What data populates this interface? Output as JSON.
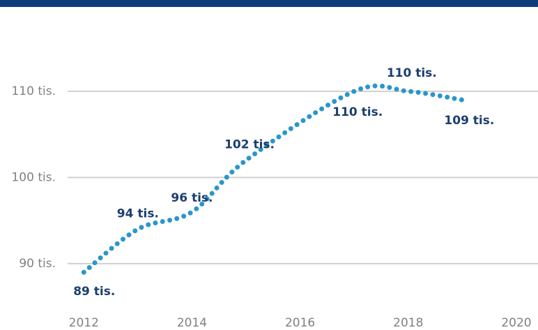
{
  "chart_data": {
    "type": "line",
    "x": [
      2012,
      2013,
      2014,
      2015,
      2017,
      2018,
      2019
    ],
    "series": [
      {
        "color": "#2a96cb",
        "values": [
          89,
          94,
          96,
          102,
          110,
          110,
          109
        ],
        "value_labels": [
          "89 tis.",
          "94 tis.",
          "96 tis.",
          "102 tis.",
          "110 tis.",
          "110 tis.",
          "109 tis."
        ]
      }
    ],
    "xlim": [
      2011.7,
      2020.4
    ],
    "xticks": [
      2012,
      2014,
      2016,
      2018,
      2020
    ],
    "ylim": [
      84,
      112.5
    ],
    "yticks": [
      {
        "value": 90,
        "label": "90 tis."
      },
      {
        "value": 100,
        "label": "100 tis."
      },
      {
        "value": 110,
        "label": "110 tis."
      }
    ],
    "grid": true
  }
}
